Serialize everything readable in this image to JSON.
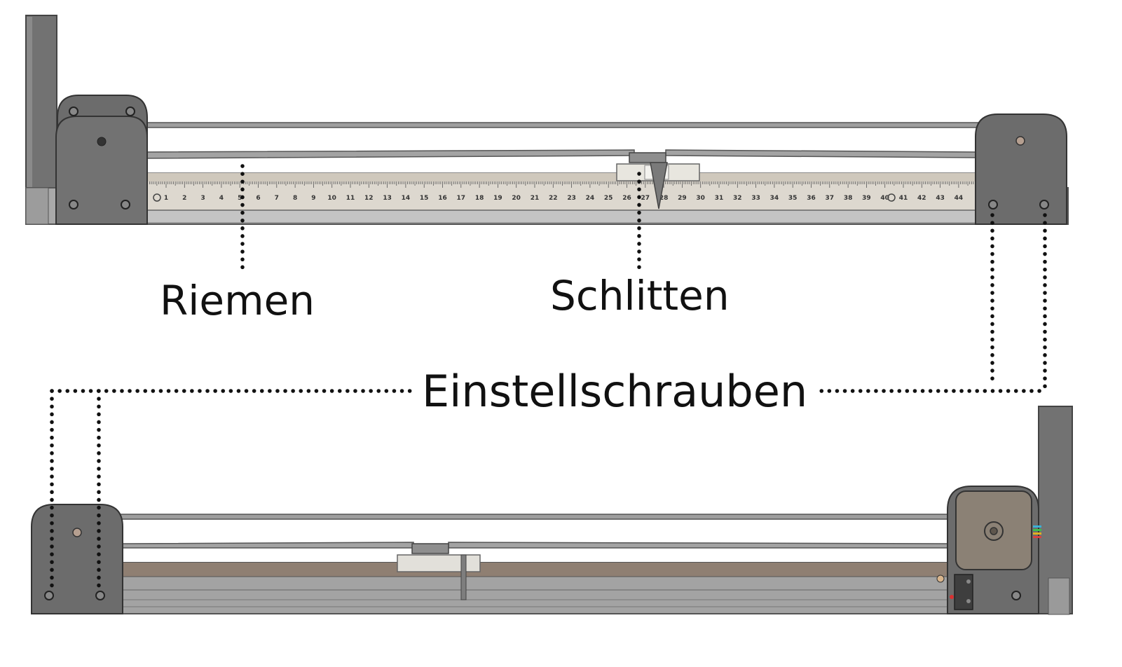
{
  "labels": {
    "belt": "Riemen",
    "carriage": "Schlitten",
    "adjusting_screws": "Einstellschrauben"
  },
  "scale": {
    "numbers": [
      "1",
      "2",
      "3",
      "4",
      "5",
      "6",
      "7",
      "8",
      "9",
      "10",
      "11",
      "12",
      "13",
      "14",
      "15",
      "16",
      "17",
      "18",
      "19",
      "20",
      "21",
      "22",
      "23",
      "24",
      "25",
      "26",
      "27",
      "28",
      "29",
      "30",
      "31",
      "32",
      "33",
      "34",
      "35",
      "36",
      "37",
      "38",
      "39",
      "40",
      "41",
      "42",
      "43",
      "44"
    ]
  },
  "colors": {
    "frame": "#6c6c6c",
    "frame_dark": "#565656",
    "rail": "#a3a3a3",
    "rail_light": "#c8c8c8",
    "scale_bg": "#ddd8cf",
    "rod": "#9a9a9a",
    "carriage": "#e6e4dd",
    "motor": "#8b8175",
    "leader": "#111111"
  }
}
